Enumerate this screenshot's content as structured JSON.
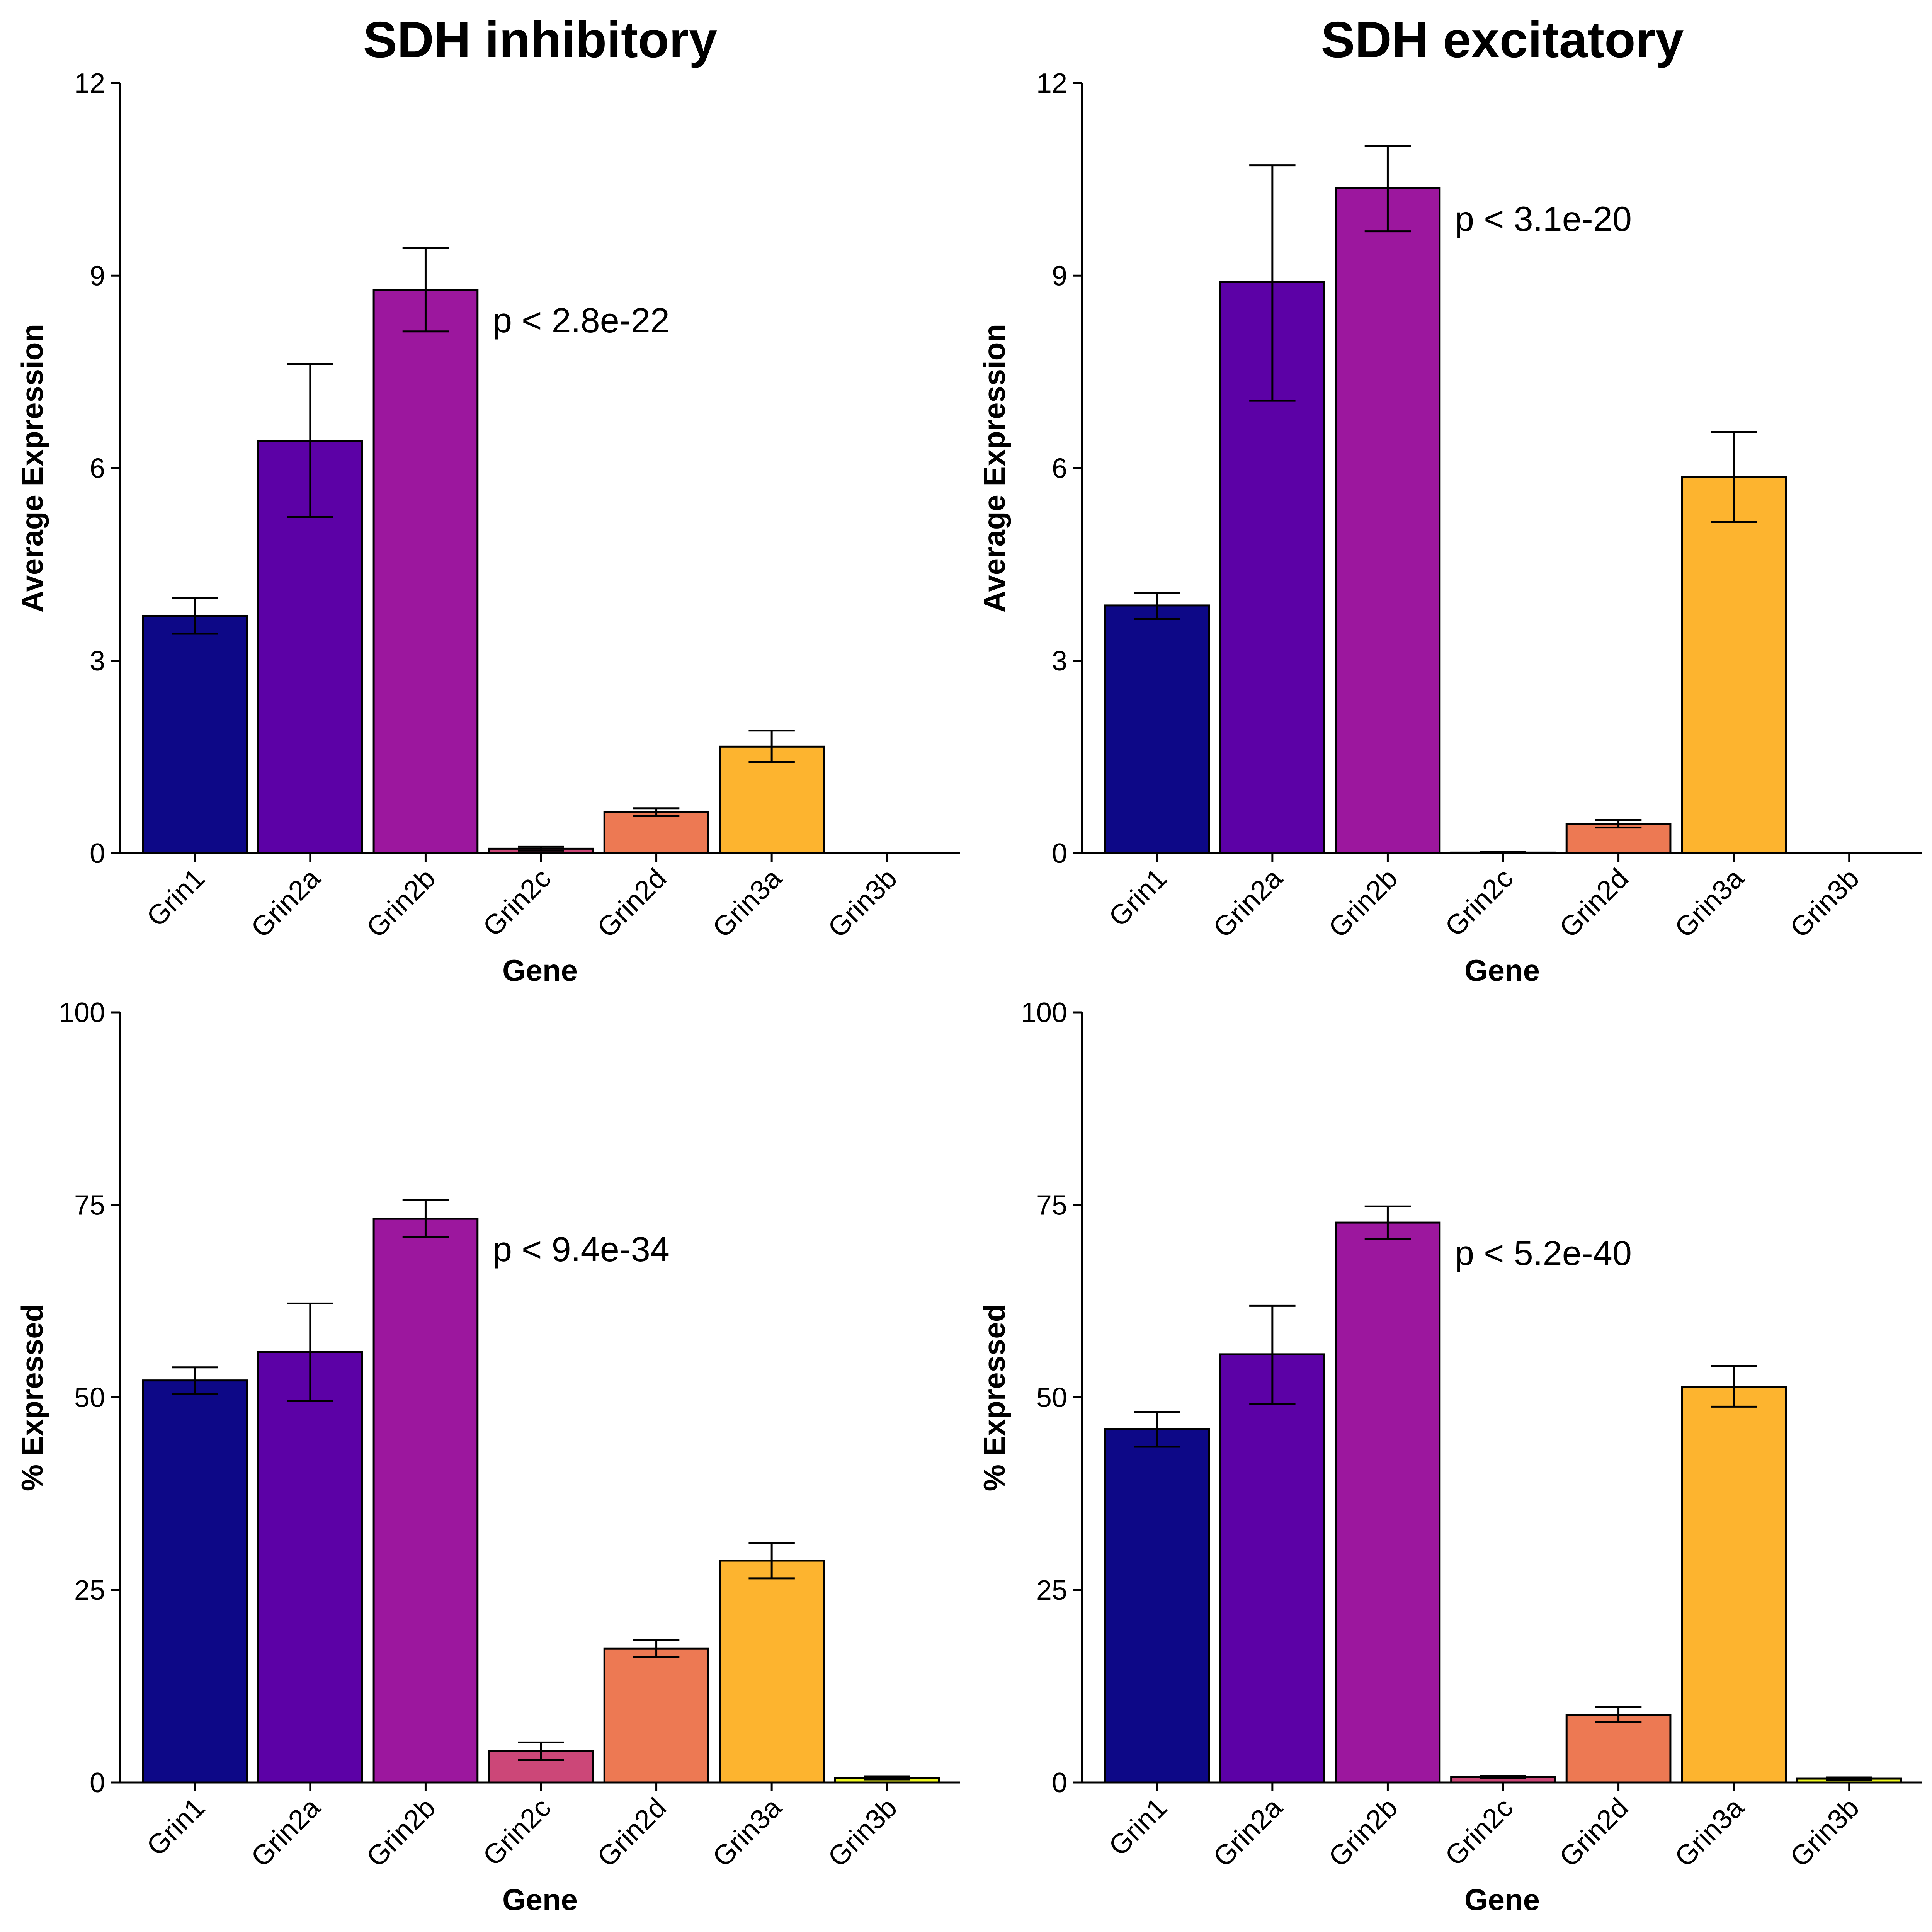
{
  "chart_data": [
    {
      "type": "bar",
      "title": "SDH inhibitory",
      "xlabel": "Gene",
      "ylabel": "Average Expression",
      "ylim": [
        0,
        12
      ],
      "yticks": [
        0,
        3,
        6,
        9,
        12
      ],
      "categories": [
        "Grin1",
        "Grin2a",
        "Grin2b",
        "Grin2c",
        "Grin2d",
        "Grin3a",
        "Grin3b"
      ],
      "values": [
        3.7,
        6.42,
        8.78,
        0.07,
        0.64,
        1.66,
        0.0
      ],
      "err_low": [
        3.42,
        5.24,
        8.13,
        0.04,
        0.58,
        1.42,
        0.0
      ],
      "err_high": [
        3.98,
        7.62,
        9.43,
        0.1,
        0.7,
        1.91,
        0.0
      ],
      "annotation": "p <  2.8e-22",
      "colors": [
        "#0d0887",
        "#5c01a6",
        "#9c179e",
        "#cc4778",
        "#ed7953",
        "#fdb42f",
        "#f0f921"
      ],
      "grid": false,
      "legend": "none"
    },
    {
      "type": "bar",
      "title": "SDH excitatory",
      "xlabel": "Gene",
      "ylabel": "Average Expression",
      "ylim": [
        0,
        12
      ],
      "yticks": [
        0,
        3,
        6,
        9,
        12
      ],
      "categories": [
        "Grin1",
        "Grin2a",
        "Grin2b",
        "Grin2c",
        "Grin2d",
        "Grin3a",
        "Grin3b"
      ],
      "values": [
        3.86,
        8.9,
        10.36,
        0.01,
        0.46,
        5.86,
        0.0
      ],
      "err_low": [
        3.65,
        7.05,
        9.69,
        0.01,
        0.4,
        5.16,
        0.0
      ],
      "err_high": [
        4.06,
        10.72,
        11.02,
        0.02,
        0.52,
        6.56,
        0.0
      ],
      "annotation": "p <  3.1e-20",
      "colors": [
        "#0d0887",
        "#5c01a6",
        "#9c179e",
        "#cc4778",
        "#ed7953",
        "#fdb42f",
        "#f0f921"
      ],
      "grid": false,
      "legend": "none"
    },
    {
      "type": "bar",
      "title": "",
      "xlabel": "Gene",
      "ylabel": "% Expressed",
      "ylim": [
        0,
        100
      ],
      "yticks": [
        0,
        25,
        50,
        75,
        100
      ],
      "categories": [
        "Grin1",
        "Grin2a",
        "Grin2b",
        "Grin2c",
        "Grin2d",
        "Grin3a",
        "Grin3b"
      ],
      "values": [
        52.2,
        55.9,
        73.2,
        4.1,
        17.4,
        28.8,
        0.6
      ],
      "err_low": [
        50.4,
        49.5,
        70.8,
        2.9,
        16.3,
        26.5,
        0.4
      ],
      "err_high": [
        53.9,
        62.2,
        75.6,
        5.2,
        18.5,
        31.1,
        0.8
      ],
      "annotation": "p <  9.4e-34",
      "colors": [
        "#0d0887",
        "#5c01a6",
        "#9c179e",
        "#cc4778",
        "#ed7953",
        "#fdb42f",
        "#f0f921"
      ],
      "grid": false,
      "legend": "none"
    },
    {
      "type": "bar",
      "title": "",
      "xlabel": "Gene",
      "ylabel": "% Expressed",
      "ylim": [
        0,
        100
      ],
      "yticks": [
        0,
        25,
        50,
        75,
        100
      ],
      "categories": [
        "Grin1",
        "Grin2a",
        "Grin2b",
        "Grin2c",
        "Grin2d",
        "Grin3a",
        "Grin3b"
      ],
      "values": [
        45.9,
        55.6,
        72.7,
        0.7,
        8.8,
        51.4,
        0.5
      ],
      "err_low": [
        43.6,
        49.1,
        70.6,
        0.55,
        7.8,
        48.8,
        0.35
      ],
      "err_high": [
        48.1,
        61.9,
        74.8,
        0.85,
        9.8,
        54.1,
        0.65
      ],
      "annotation": "p <  5.2e-40",
      "colors": [
        "#0d0887",
        "#5c01a6",
        "#9c179e",
        "#cc4778",
        "#ed7953",
        "#fdb42f",
        "#f0f921"
      ],
      "grid": false,
      "legend": "none"
    }
  ]
}
